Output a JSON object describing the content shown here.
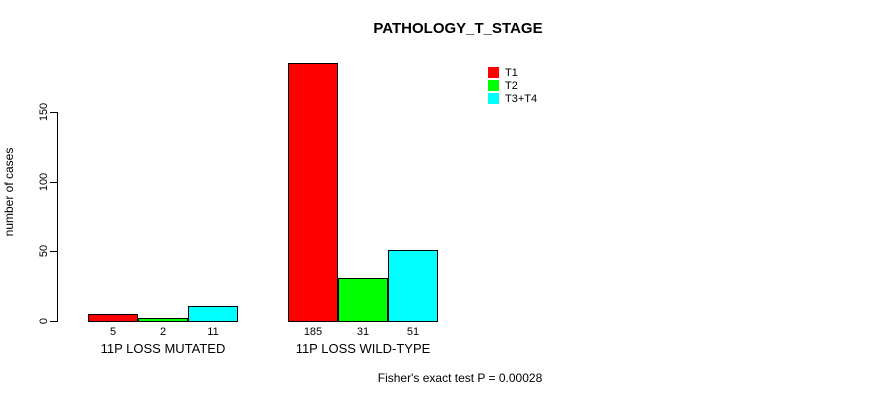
{
  "chart_data": {
    "type": "bar",
    "title": "PATHOLOGY_T_STAGE",
    "xlabel": "",
    "ylabel": "number of cases",
    "categories": [
      "11P LOSS MUTATED",
      "11P LOSS WILD-TYPE"
    ],
    "series": [
      {
        "name": "T1",
        "color": "#ff0000",
        "values": [
          5,
          185
        ]
      },
      {
        "name": "T2",
        "color": "#00ff00",
        "values": [
          2,
          31
        ]
      },
      {
        "name": "T3+T4",
        "color": "#00ffff",
        "values": [
          11,
          51
        ]
      }
    ],
    "bar_value_labels": [
      [
        "5",
        "2",
        "11"
      ],
      [
        "185",
        "31",
        "51"
      ]
    ],
    "yticks": [
      0,
      50,
      100,
      150
    ],
    "ylim": [
      0,
      150
    ],
    "grid": false,
    "legend_position": "top-right",
    "annotation": "Fisher's exact test P = 0.00028"
  }
}
